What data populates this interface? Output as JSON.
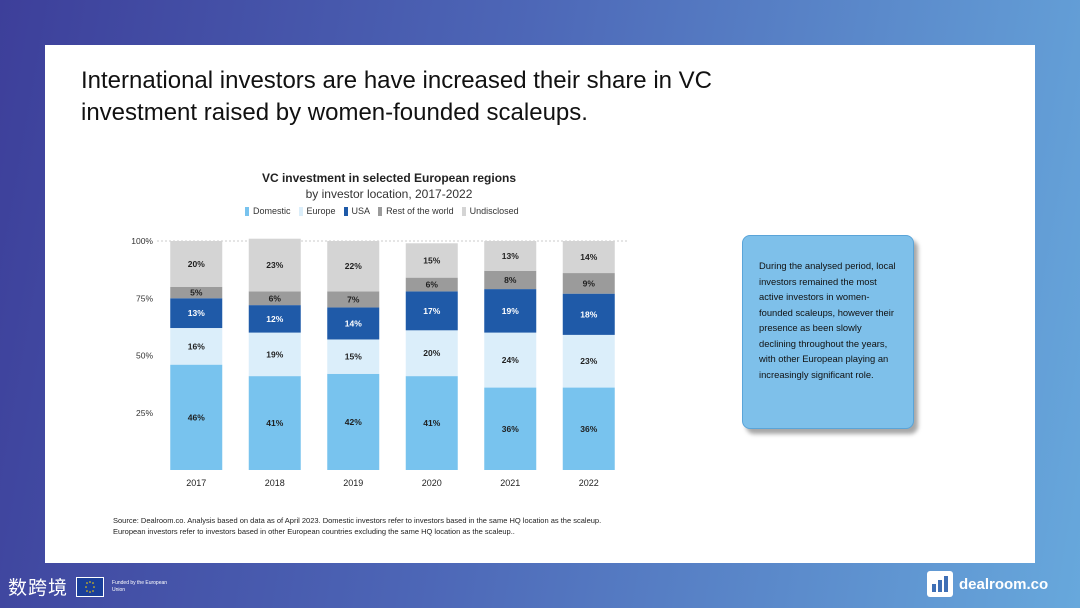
{
  "headline": "International investors are have increased their share in VC investment raised by women-founded scaleups.",
  "callout": "During the analysed period, local investors remained the most active investors in women-founded scaleups, however their presence as been slowly declining throughout the years, with other European playing an increasingly significant role.",
  "source": {
    "line1": "Source: Dealroom.co. Analysis based on data as of April 2023. Domestic investors refer to investors based in the same HQ location as the scaleup.",
    "line2": "European investors refer to investors based in other European countries excluding the same HQ location as the scaleup.."
  },
  "footer": {
    "watermark": "数跨境",
    "eu_text": "Funded by the European Union",
    "brand": "dealroom.co"
  },
  "icons": {
    "eu": "eu-flag-icon",
    "brand": "dealroom-logo-icon"
  },
  "chart_data": {
    "type": "bar",
    "stacked": true,
    "title": "VC investment in selected European regions",
    "subtitle": "by investor location, 2017-2022",
    "categories": [
      "2017",
      "2018",
      "2019",
      "2020",
      "2021",
      "2022"
    ],
    "y_ticks": [
      "25%",
      "50%",
      "75%",
      "100%"
    ],
    "ylim": [
      0,
      100
    ],
    "grid": false,
    "legend_position": "top",
    "series": [
      {
        "name": "Domestic",
        "color": "#78c3ee",
        "label_color": "#1f1f1f",
        "values": [
          46,
          41,
          42,
          41,
          36,
          36
        ]
      },
      {
        "name": "Europe",
        "color": "#dbeefa",
        "label_color": "#1f1f1f",
        "values": [
          16,
          19,
          15,
          20,
          24,
          23
        ]
      },
      {
        "name": "USA",
        "color": "#1f5aa8",
        "label_color": "#ffffff",
        "values": [
          13,
          12,
          14,
          17,
          19,
          18
        ]
      },
      {
        "name": "Rest of the world",
        "color": "#9b9b9b",
        "label_color": "#1f1f1f",
        "values": [
          5,
          6,
          7,
          6,
          8,
          9
        ]
      },
      {
        "name": "Undisclosed",
        "color": "#d4d4d4",
        "label_color": "#1f1f1f",
        "values": [
          20,
          23,
          22,
          15,
          13,
          14
        ]
      }
    ]
  }
}
